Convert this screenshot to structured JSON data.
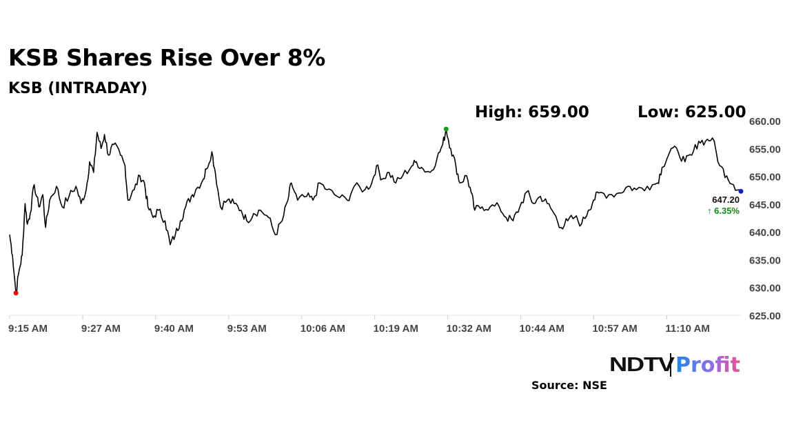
{
  "header": {
    "title": "KSB Shares Rise Over 8%",
    "subtitle": "KSB (INTRADAY)",
    "high_label": "High: 659.00",
    "low_label": "Low: 625.00"
  },
  "footer": {
    "source": "Source: NSE",
    "logo_left": "NDTV",
    "logo_right": "Profit"
  },
  "chart_data": {
    "type": "line",
    "title": "KSB (INTRADAY)",
    "xlabel": "",
    "ylabel": "",
    "xlim_minutes": [
      0,
      128
    ],
    "ylim": [
      625,
      660
    ],
    "y_ticks": [
      "625.00",
      "630.00",
      "635.00",
      "640.00",
      "645.00",
      "650.00",
      "655.00",
      "660.00"
    ],
    "x_ticks": [
      "9:15 AM",
      "9:27 AM",
      "9:40 AM",
      "9:53 AM",
      "10:06 AM",
      "10:19 AM",
      "10:32 AM",
      "10:44 AM",
      "10:57 AM",
      "11:10 AM"
    ],
    "x_tick_step_minutes": 12.78,
    "last_value": "647.20",
    "change": "↑ 6.35%",
    "colors": {
      "line": "#000000",
      "high": "#1a9a1a",
      "low": "#e01010",
      "last": "#1020c0",
      "change": "#1a8a1a"
    },
    "series": [
      {
        "name": "KSB",
        "points": [
          [
            0,
            639.5
          ],
          [
            0.5,
            635.8
          ],
          [
            1.1,
            629
          ],
          [
            1.7,
            633.3
          ],
          [
            2.2,
            635.8
          ],
          [
            2.7,
            645.1
          ],
          [
            3.1,
            641.4
          ],
          [
            3.6,
            643.3
          ],
          [
            4.3,
            648.5
          ],
          [
            5.1,
            644.5
          ],
          [
            5.8,
            646.7
          ],
          [
            6.3,
            640.8
          ],
          [
            7,
            645.7
          ],
          [
            8.2,
            648.2
          ],
          [
            9.2,
            644.5
          ],
          [
            10.4,
            646.4
          ],
          [
            11.6,
            648.2
          ],
          [
            12.5,
            645.1
          ],
          [
            13.4,
            647.6
          ],
          [
            14,
            652.6
          ],
          [
            14.7,
            650.7
          ],
          [
            15.3,
            657.9
          ],
          [
            16,
            655
          ],
          [
            16.6,
            657.5
          ],
          [
            17.3,
            653.8
          ],
          [
            18.2,
            655.7
          ],
          [
            19.4,
            653.8
          ],
          [
            20.2,
            651.9
          ],
          [
            20.7,
            645.7
          ],
          [
            21.8,
            647.6
          ],
          [
            22.8,
            650.1
          ],
          [
            23.6,
            648.8
          ],
          [
            24.2,
            644.5
          ],
          [
            25.1,
            642.6
          ],
          [
            26,
            643.9
          ],
          [
            27.2,
            642
          ],
          [
            28.1,
            637.7
          ],
          [
            29,
            639.5
          ],
          [
            29.9,
            642
          ],
          [
            30.8,
            644.5
          ],
          [
            31.8,
            646.4
          ],
          [
            32.6,
            647.6
          ],
          [
            33.9,
            649.5
          ],
          [
            34.4,
            651.3
          ],
          [
            35.4,
            654.4
          ],
          [
            36,
            650.7
          ],
          [
            36.9,
            644.5
          ],
          [
            38.1,
            645.7
          ],
          [
            39.3,
            645.1
          ],
          [
            40.5,
            643.9
          ],
          [
            41.5,
            642
          ],
          [
            42.7,
            643.3
          ],
          [
            43.9,
            643.9
          ],
          [
            45.3,
            642.6
          ],
          [
            46.5,
            639.5
          ],
          [
            47.7,
            642
          ],
          [
            48.7,
            645.7
          ],
          [
            49.3,
            648.8
          ],
          [
            50.4,
            645.7
          ],
          [
            52,
            646.4
          ],
          [
            53.1,
            645.7
          ],
          [
            54.3,
            648.8
          ],
          [
            55.5,
            647.6
          ],
          [
            57.3,
            646.4
          ],
          [
            59.1,
            645.7
          ],
          [
            60.3,
            648.2
          ],
          [
            62.2,
            647.6
          ],
          [
            63.4,
            648.8
          ],
          [
            64.2,
            651.9
          ],
          [
            65.2,
            649.5
          ],
          [
            66.4,
            650.7
          ],
          [
            67.6,
            648.8
          ],
          [
            68.8,
            650.1
          ],
          [
            70.4,
            651.9
          ],
          [
            71.2,
            652.6
          ],
          [
            72.4,
            651.3
          ],
          [
            73.6,
            650.7
          ],
          [
            74.8,
            653.2
          ],
          [
            75.8,
            655.7
          ],
          [
            76.4,
            658.5
          ],
          [
            77.2,
            655
          ],
          [
            78.1,
            651.9
          ],
          [
            78.8,
            648.8
          ],
          [
            80,
            650.1
          ],
          [
            80.8,
            647
          ],
          [
            81.4,
            643.9
          ],
          [
            82.7,
            644.5
          ],
          [
            84.1,
            644.5
          ],
          [
            85.7,
            644.5
          ],
          [
            86.9,
            642.6
          ],
          [
            88.1,
            642
          ],
          [
            89.3,
            644.5
          ],
          [
            90.5,
            647.2
          ],
          [
            91.7,
            645.1
          ],
          [
            92.9,
            646.4
          ],
          [
            94.1,
            645.1
          ],
          [
            95.3,
            643.3
          ],
          [
            96.5,
            640.8
          ],
          [
            97.7,
            642
          ],
          [
            98.9,
            642.6
          ],
          [
            100.1,
            641.4
          ],
          [
            101.3,
            643.9
          ],
          [
            102.2,
            645.7
          ],
          [
            103.1,
            647
          ],
          [
            104.9,
            646.7
          ],
          [
            106.7,
            647
          ],
          [
            108.2,
            648.2
          ],
          [
            109.7,
            647.6
          ],
          [
            111.6,
            648.2
          ],
          [
            113.4,
            648.8
          ],
          [
            114.2,
            651.6
          ],
          [
            115.8,
            655
          ],
          [
            117,
            654.4
          ],
          [
            118.2,
            652.6
          ],
          [
            119.4,
            653.8
          ],
          [
            120.6,
            656.3
          ],
          [
            121.8,
            656.3
          ],
          [
            123,
            656.9
          ],
          [
            124.3,
            651.9
          ],
          [
            125.5,
            650.1
          ],
          [
            126.7,
            648.5
          ],
          [
            128,
            647.3
          ]
        ]
      }
    ]
  }
}
